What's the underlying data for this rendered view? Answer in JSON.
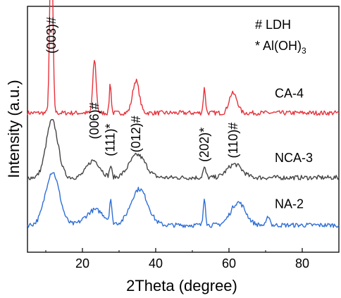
{
  "chart_data": {
    "type": "line",
    "xlabel": "2Theta (degree)",
    "ylabel": "Intensity (a.u.)",
    "xlim": [
      5,
      90
    ],
    "xticks": [
      20,
      40,
      60,
      80
    ],
    "xtick_labels": [
      "20",
      "40",
      "60",
      "80"
    ],
    "y_ticks_shown": false,
    "grid": false,
    "legend": {
      "placement": "top-right",
      "entries": [
        {
          "symbol": "#",
          "label": "LDH",
          "text": "# LDH"
        },
        {
          "symbol": "*",
          "label": "Al(OH)3",
          "text_main": "* Al(OH)",
          "text_sub": "3"
        }
      ]
    },
    "series": [
      {
        "name": "CA-4",
        "color": "#e8313a",
        "baseline": 0.71,
        "noise": 0.012,
        "peaks": [
          {
            "x": 11.5,
            "h": 1.0,
            "w": 0.4
          },
          {
            "x": 23.3,
            "h": 0.28,
            "w": 0.45
          },
          {
            "x": 27.6,
            "h": 0.16,
            "w": 0.25
          },
          {
            "x": 34.6,
            "h": 0.17,
            "w": 0.9
          },
          {
            "x": 53.3,
            "h": 0.13,
            "w": 0.3
          },
          {
            "x": 60.6,
            "h": 0.08,
            "w": 0.8
          },
          {
            "x": 61.9,
            "h": 0.06,
            "w": 0.8
          }
        ]
      },
      {
        "name": "NCA-3",
        "color": "#444444",
        "baseline": 0.37,
        "noise": 0.012,
        "peaks": [
          {
            "x": 11.7,
            "h": 0.3,
            "w": 1.6
          },
          {
            "x": 23.0,
            "h": 0.09,
            "w": 1.8
          },
          {
            "x": 27.7,
            "h": 0.06,
            "w": 0.3
          },
          {
            "x": 35.0,
            "h": 0.12,
            "w": 2.2
          },
          {
            "x": 53.3,
            "h": 0.05,
            "w": 0.4
          },
          {
            "x": 61.5,
            "h": 0.07,
            "w": 2.0
          }
        ]
      },
      {
        "name": "NA-2",
        "color": "#2f6fd6",
        "baseline": 0.12,
        "noise": 0.012,
        "peaks": [
          {
            "x": 11.8,
            "h": 0.28,
            "w": 1.9
          },
          {
            "x": 23.5,
            "h": 0.08,
            "w": 2.5
          },
          {
            "x": 27.7,
            "h": 0.12,
            "w": 0.28
          },
          {
            "x": 35.5,
            "h": 0.19,
            "w": 2.3
          },
          {
            "x": 53.3,
            "h": 0.15,
            "w": 0.3
          },
          {
            "x": 62.5,
            "h": 0.12,
            "w": 2.0
          },
          {
            "x": 70.8,
            "h": 0.05,
            "w": 0.4
          }
        ]
      }
    ],
    "peak_labels": [
      {
        "text": "(003)#",
        "x": 11.5,
        "level": 1.0
      },
      {
        "text": "(006)#",
        "x": 23.3,
        "level": 0.55
      },
      {
        "text": "(111)*",
        "x": 27.6,
        "level": 0.46
      },
      {
        "text": "(012)#",
        "x": 34.6,
        "level": 0.48
      },
      {
        "text": "(202)*",
        "x": 53.3,
        "level": 0.43
      },
      {
        "text": "(110)#",
        "x": 61.2,
        "level": 0.45
      }
    ]
  }
}
